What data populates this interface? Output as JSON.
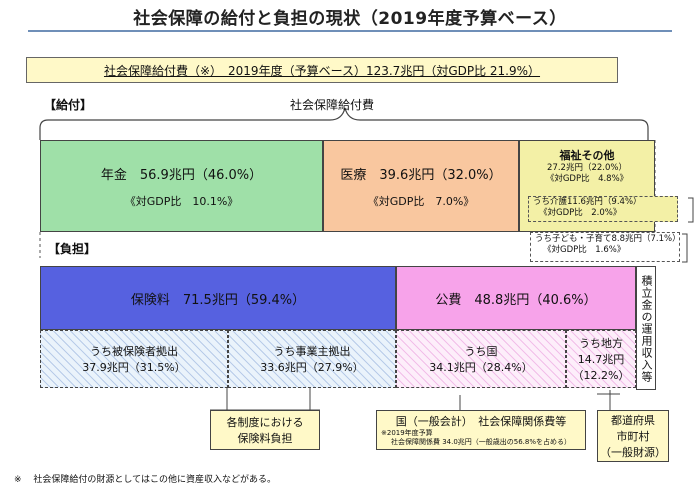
{
  "title": "社会保障の給付と負担の現状（2019年度予算ベース）",
  "summary": "社会保障給付費（※）　2019年度（予算ベース）123.7兆円（対GDP比 21.9%）",
  "benefits": {
    "label": "【給付】",
    "brace_label": "社会保障給付費",
    "pension": {
      "label": "年金　56.9兆円（46.0%）",
      "gdp": "《対GDP比　10.1%》"
    },
    "medical": {
      "label": "医療　39.6兆円（32.0%）",
      "gdp": "《対GDP比　7.0%》"
    },
    "welfare": {
      "label": "福祉その他",
      "amount": "27.2兆円（22.0%）",
      "gdp": "《対GDP比　4.8%》",
      "care": "うち介護11.6兆円（9.4%）",
      "care_gdp": "《対GDP比　2.0%》",
      "child": "うち子ども・子育て8.8兆円（7.1%）",
      "child_gdp": "《対GDP比　1.6%》"
    }
  },
  "burden": {
    "label": "【負担】",
    "insurance": {
      "label": "保険料　71.5兆円（59.4%）"
    },
    "public": {
      "label": "公費　48.8兆円（40.6%）"
    },
    "reserve": {
      "label": "積立金の運用収入等"
    },
    "insured": {
      "label": "うち被保険者拠出",
      "amount": "37.9兆円（31.5%）"
    },
    "employer": {
      "label": "うち事業主拠出",
      "amount": "33.6兆円（27.9%）"
    },
    "national": {
      "label": "うち国",
      "amount": "34.1兆円（28.4%）"
    },
    "local": {
      "label": "うち地方",
      "amount": "14.7兆円",
      "pct": "（12.2%）"
    }
  },
  "callouts": {
    "premium": {
      "line1": "各制度における",
      "line2": "保険料負担"
    },
    "national": {
      "title": "国（一般会計）　社会保障関係費等",
      "note1": "※2019年度予算",
      "note2": "社会保障関係費 34.0兆円（一般歳出の56.8%を占める）"
    },
    "local": {
      "line1": "都道府県",
      "line2": "市町村",
      "line3": "（一般財源）"
    }
  },
  "footnote": "※　 社会保障給付の財源としてはこの他に資産収入などがある。",
  "colors": {
    "pension": "#9fe0a8",
    "medical": "#f9c79f",
    "welfare": "#f3f0a6",
    "insurance": "#5661e0",
    "public": "#f7a3ea",
    "callout": "#fff9c8"
  }
}
